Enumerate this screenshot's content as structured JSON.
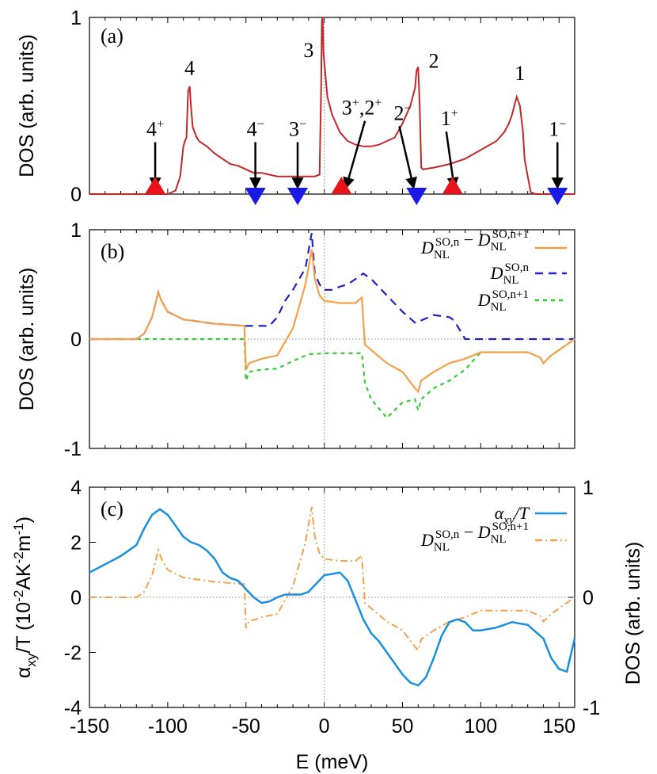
{
  "chart_data": [
    {
      "type": "line",
      "panel_label": "(a)",
      "ylabel": "DOS (arb. units)",
      "xlim": [
        -150,
        160
      ],
      "ylim": [
        0,
        1
      ],
      "yticks": [
        "0",
        "1"
      ],
      "grid": false,
      "vline_at": 0,
      "colors": {
        "dos": "#c0282a",
        "arrow": "#000000",
        "up_marker": "#e8141b",
        "down_marker": "#1a1ae6"
      },
      "series": [
        {
          "x": [
            -150,
            -120,
            -100,
            -95,
            -92,
            -90,
            -89,
            -88,
            -87,
            -86,
            -85,
            -84,
            -82,
            -80,
            -75,
            -70,
            -65,
            -60,
            -55,
            -50,
            -45,
            -40,
            -35,
            -30,
            -25,
            -20,
            -15,
            -10,
            -6,
            -3,
            -2,
            -1.5,
            -1,
            -0.5,
            0,
            1,
            2,
            5,
            10,
            15,
            20,
            25,
            30,
            35,
            40,
            45,
            50,
            55,
            58,
            59,
            60,
            61,
            62,
            63,
            70,
            80,
            90,
            100,
            110,
            115,
            118,
            120,
            122,
            123,
            125,
            127,
            128,
            130,
            132,
            135,
            140,
            160
          ],
          "y": [
            0,
            0,
            0,
            0.02,
            0.1,
            0.27,
            0.3,
            0.32,
            0.58,
            0.61,
            0.48,
            0.38,
            0.33,
            0.3,
            0.27,
            0.23,
            0.2,
            0.17,
            0.16,
            0.14,
            0.12,
            0.12,
            0.11,
            0.1,
            0.1,
            0.1,
            0.1,
            0.1,
            0.1,
            0.11,
            0.6,
            0.98,
            1.0,
            0.8,
            0.75,
            0.65,
            0.55,
            0.45,
            0.35,
            0.3,
            0.28,
            0.27,
            0.27,
            0.28,
            0.3,
            0.32,
            0.4,
            0.5,
            0.6,
            0.7,
            0.72,
            0.5,
            0.15,
            0.14,
            0.15,
            0.17,
            0.2,
            0.25,
            0.3,
            0.35,
            0.4,
            0.45,
            0.52,
            0.55,
            0.5,
            0.35,
            0.2,
            0.1,
            0.01,
            0,
            0,
            0
          ]
        }
      ],
      "peak_labels": [
        {
          "text": "4",
          "x": -86,
          "y": 0.72
        },
        {
          "text": "3",
          "x": -10,
          "y": 0.82
        },
        {
          "text": "2",
          "x": 70,
          "y": 0.76
        },
        {
          "text": "1",
          "x": 125,
          "y": 0.69
        }
      ],
      "arrows": [
        {
          "label": "4",
          "sup": "+",
          "x": -108,
          "label_x": -108,
          "label_y": 0.33
        },
        {
          "label": "4",
          "sup": "−",
          "x": -44,
          "label_x": -44,
          "label_y": 0.33
        },
        {
          "label": "3",
          "sup": "−",
          "x": -17,
          "label_x": -17,
          "label_y": 0.33
        },
        {
          "label": "3",
          "sup": "+",
          "label2": ",2",
          "sup2": "+",
          "x": 14,
          "label_x": 24,
          "label_y": 0.45
        },
        {
          "label": "2",
          "sup": "−",
          "x": 57,
          "label_x": 50,
          "label_y": 0.42
        },
        {
          "label": "1",
          "sup": "+",
          "x": 83,
          "label_x": 80,
          "label_y": 0.39
        },
        {
          "label": "1",
          "sup": "−",
          "x": 149,
          "label_x": 149,
          "label_y": 0.33
        }
      ],
      "markers_up": [
        -108,
        11,
        82
      ],
      "markers_down": [
        -44,
        -17,
        59,
        149
      ]
    },
    {
      "type": "line",
      "panel_label": "(b)",
      "ylabel": "DOS (arb. units)",
      "xlim": [
        -150,
        160
      ],
      "ylim": [
        -1,
        1
      ],
      "yticks": [
        "-1",
        "0",
        "1"
      ],
      "grid": false,
      "hline_at": 0,
      "vline_at": 0,
      "series": [
        {
          "name_main": "D",
          "name_sub": "NL",
          "name_sup": "SO,n",
          "name_minus_sup": "SO,n+1",
          "style": "solid",
          "color": "#f5a04a",
          "x": [
            -150,
            -120,
            -115,
            -110,
            -106,
            -104,
            -100,
            -90,
            -70,
            -51,
            -50,
            -48,
            -40,
            -30,
            -20,
            -12,
            -8,
            -6,
            -3,
            0,
            10,
            20,
            24,
            26,
            30,
            40,
            50,
            58,
            60,
            62,
            70,
            80,
            90,
            100,
            110,
            120,
            130,
            138,
            140,
            145,
            150,
            160
          ],
          "y": [
            0,
            0,
            0.05,
            0.2,
            0.43,
            0.35,
            0.25,
            0.18,
            0.14,
            0.12,
            -0.28,
            -0.22,
            -0.18,
            -0.15,
            0.1,
            0.5,
            0.82,
            0.55,
            0.4,
            0.35,
            0.33,
            0.33,
            0.38,
            -0.05,
            -0.1,
            -0.22,
            -0.3,
            -0.45,
            -0.48,
            -0.38,
            -0.3,
            -0.22,
            -0.18,
            -0.12,
            -0.12,
            -0.12,
            -0.12,
            -0.17,
            -0.22,
            -0.15,
            -0.1,
            0
          ]
        },
        {
          "name_main": "D",
          "name_sub": "NL",
          "name_sup": "SO,n",
          "style": "dash",
          "color": "#1f22c4",
          "x": [
            -150,
            -120,
            -115,
            -110,
            -106,
            -104,
            -100,
            -90,
            -70,
            -50,
            -40,
            -35,
            -30,
            -25,
            -20,
            -12,
            -8,
            -6,
            -3,
            0,
            5,
            10,
            15,
            20,
            25,
            30,
            40,
            50,
            58,
            60,
            62,
            70,
            80,
            83,
            88,
            90,
            160
          ],
          "y": [
            0,
            0,
            0.05,
            0.2,
            0.43,
            0.35,
            0.25,
            0.18,
            0.14,
            0.12,
            0.12,
            0.12,
            0.2,
            0.35,
            0.45,
            0.65,
            0.97,
            0.6,
            0.5,
            0.45,
            0.45,
            0.48,
            0.5,
            0.55,
            0.6,
            0.55,
            0.4,
            0.25,
            0.15,
            0.15,
            0.17,
            0.22,
            0.2,
            0.17,
            0.05,
            0,
            0
          ]
        },
        {
          "name_main": "D",
          "name_sub": "NL",
          "name_sup": "SO,n+1",
          "style": "dot",
          "color": "#33cc33",
          "x": [
            -150,
            -51,
            -50,
            -48,
            -40,
            -30,
            -20,
            -10,
            0,
            10,
            20,
            24,
            26,
            30,
            40,
            45,
            50,
            58,
            60,
            62,
            70,
            80,
            90,
            100,
            110,
            120,
            130,
            138,
            140,
            145,
            150,
            160
          ],
          "y": [
            0,
            0,
            -0.38,
            -0.3,
            -0.28,
            -0.27,
            -0.2,
            -0.14,
            -0.13,
            -0.13,
            -0.13,
            -0.13,
            -0.4,
            -0.55,
            -0.72,
            -0.65,
            -0.58,
            -0.55,
            -0.65,
            -0.55,
            -0.45,
            -0.38,
            -0.28,
            -0.12,
            -0.12,
            -0.12,
            -0.12,
            -0.17,
            -0.22,
            -0.15,
            -0.1,
            0
          ]
        }
      ]
    },
    {
      "type": "line",
      "panel_label": "(c)",
      "ylabel": "α",
      "ylabel_sub": "xy",
      "ylabel_rest": "/T (10",
      "ylabel_sup": "-2",
      "ylabel_rest2": "AK",
      "ylabel_sup2": "-2",
      "ylabel_rest3": "m",
      "ylabel_sup3": "-1",
      "ylabel_end": ")",
      "y2label": "DOS (arb. units)",
      "xlabel": "E (meV)",
      "xlim": [
        -150,
        160
      ],
      "ylim": [
        -4,
        4
      ],
      "y2lim": [
        -1,
        1
      ],
      "xticks": [
        "-150",
        "-100",
        "-50",
        "0",
        "50",
        "100",
        "150"
      ],
      "yticks": [
        "-4",
        "-2",
        "0",
        "2",
        "4"
      ],
      "y2ticks": [
        "-1",
        "0",
        "1"
      ],
      "grid": false,
      "hline_at": 0,
      "vline_at": 0,
      "series": [
        {
          "name_main": "α",
          "name_sub": "xy",
          "name_rest": "/T",
          "style": "solid",
          "color": "#1a8fe0",
          "axis": "left",
          "x": [
            -150,
            -140,
            -130,
            -120,
            -115,
            -110,
            -105,
            -100,
            -95,
            -90,
            -85,
            -80,
            -75,
            -70,
            -65,
            -60,
            -55,
            -50,
            -45,
            -40,
            -35,
            -30,
            -25,
            -20,
            -15,
            -10,
            -5,
            0,
            5,
            10,
            15,
            20,
            25,
            30,
            35,
            40,
            45,
            50,
            55,
            60,
            65,
            70,
            75,
            80,
            85,
            90,
            95,
            100,
            110,
            120,
            130,
            140,
            145,
            150,
            155,
            160
          ],
          "y": [
            0.9,
            1.2,
            1.5,
            1.9,
            2.5,
            3.0,
            3.2,
            3.0,
            2.6,
            2.2,
            2.0,
            1.9,
            1.7,
            1.4,
            0.9,
            0.7,
            0.6,
            0.3,
            0.0,
            -0.2,
            -0.15,
            0.0,
            0.1,
            0.1,
            0.1,
            0.2,
            0.5,
            0.8,
            0.85,
            0.9,
            0.6,
            -0.1,
            -0.8,
            -1.3,
            -1.6,
            -2.0,
            -2.4,
            -2.8,
            -3.1,
            -3.2,
            -2.9,
            -2.2,
            -1.4,
            -0.9,
            -0.8,
            -0.9,
            -1.2,
            -1.2,
            -1.1,
            -0.9,
            -1.0,
            -1.5,
            -2.2,
            -2.6,
            -2.7,
            -1.5
          ]
        },
        {
          "name_main": "D",
          "name_sub": "NL",
          "name_sup": "SO,n",
          "name_minus_sup": "SO,n+1",
          "style": "dashdot",
          "color": "#f5a04a",
          "axis": "right",
          "x": [
            -150,
            -120,
            -115,
            -110,
            -106,
            -104,
            -100,
            -90,
            -70,
            -51,
            -50,
            -48,
            -40,
            -30,
            -20,
            -12,
            -8,
            -6,
            -3,
            0,
            10,
            20,
            24,
            26,
            30,
            40,
            50,
            58,
            60,
            62,
            70,
            80,
            90,
            100,
            110,
            120,
            130,
            138,
            140,
            145,
            150,
            160
          ],
          "y": [
            0,
            0,
            0.05,
            0.2,
            0.43,
            0.35,
            0.25,
            0.18,
            0.14,
            0.12,
            -0.28,
            -0.22,
            -0.18,
            -0.15,
            0.1,
            0.5,
            0.82,
            0.55,
            0.4,
            0.35,
            0.33,
            0.33,
            0.38,
            -0.05,
            -0.1,
            -0.22,
            -0.3,
            -0.45,
            -0.48,
            -0.38,
            -0.3,
            -0.22,
            -0.18,
            -0.12,
            -0.12,
            -0.12,
            -0.12,
            -0.17,
            -0.22,
            -0.15,
            -0.1,
            0
          ]
        }
      ]
    }
  ]
}
